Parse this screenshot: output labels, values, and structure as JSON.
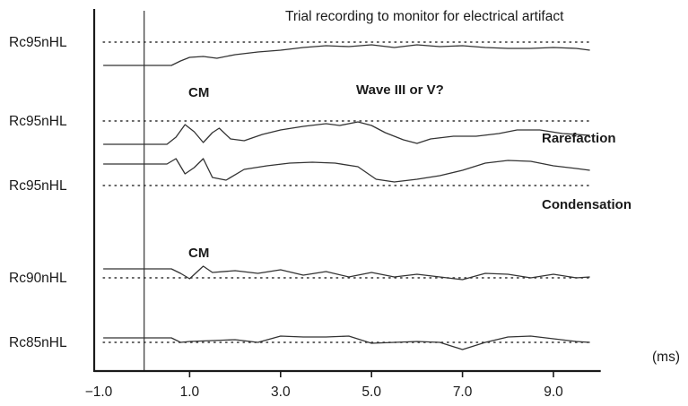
{
  "chart_data": {
    "type": "line",
    "title": "Trial recording to monitor for electrical artifact",
    "x_unit_label": "(ms)",
    "x_range": [
      -1.0,
      10.0
    ],
    "x_ticks": [
      -1.0,
      1.0,
      3.0,
      5.0,
      7.0,
      9.0
    ],
    "x_tick_labels": [
      "−1.0",
      "1.0",
      "3.0",
      "5.0",
      "7.0",
      "9.0"
    ],
    "stimulus_onset_ms": 0.0,
    "grid": false,
    "series": [
      {
        "name": "Rc95nHL",
        "note": "",
        "points": [
          [
            -0.9,
            0
          ],
          [
            0.6,
            0
          ],
          [
            0.8,
            0.5
          ],
          [
            1.0,
            0.9
          ],
          [
            1.3,
            1.0
          ],
          [
            1.6,
            0.8
          ],
          [
            2.0,
            1.2
          ],
          [
            2.5,
            1.5
          ],
          [
            3.0,
            1.7
          ],
          [
            3.5,
            2.0
          ],
          [
            4.0,
            2.2
          ],
          [
            4.5,
            2.1
          ],
          [
            5.0,
            2.3
          ],
          [
            5.5,
            2.0
          ],
          [
            6.0,
            2.3
          ],
          [
            6.5,
            2.1
          ],
          [
            7.0,
            2.2
          ],
          [
            7.5,
            2.0
          ],
          [
            8.0,
            1.9
          ],
          [
            8.5,
            1.9
          ],
          [
            9.0,
            2.0
          ],
          [
            9.5,
            1.9
          ],
          [
            9.8,
            1.7
          ]
        ]
      },
      {
        "name": "Rc95nHL",
        "note": "Rarefaction",
        "points": [
          [
            -0.9,
            0
          ],
          [
            0.5,
            0
          ],
          [
            0.7,
            0.8
          ],
          [
            0.9,
            2.2
          ],
          [
            1.1,
            1.4
          ],
          [
            1.3,
            0.2
          ],
          [
            1.5,
            1.3
          ],
          [
            1.65,
            1.8
          ],
          [
            1.9,
            0.6
          ],
          [
            2.2,
            0.4
          ],
          [
            2.6,
            1.1
          ],
          [
            3.0,
            1.6
          ],
          [
            3.5,
            2.0
          ],
          [
            4.0,
            2.3
          ],
          [
            4.3,
            2.1
          ],
          [
            4.7,
            2.5
          ],
          [
            5.0,
            2.1
          ],
          [
            5.3,
            1.3
          ],
          [
            5.7,
            0.5
          ],
          [
            6.0,
            0.1
          ],
          [
            6.3,
            0.6
          ],
          [
            6.8,
            0.9
          ],
          [
            7.3,
            0.9
          ],
          [
            7.8,
            1.2
          ],
          [
            8.2,
            1.6
          ],
          [
            8.7,
            1.6
          ],
          [
            9.2,
            1.2
          ],
          [
            9.8,
            1.0
          ]
        ]
      },
      {
        "name": "Rc95nHL",
        "note": "Condensation",
        "points": [
          [
            -0.9,
            0
          ],
          [
            0.5,
            0
          ],
          [
            0.7,
            0.6
          ],
          [
            0.9,
            -1.1
          ],
          [
            1.1,
            -0.4
          ],
          [
            1.3,
            0.6
          ],
          [
            1.5,
            -1.5
          ],
          [
            1.8,
            -1.8
          ],
          [
            2.2,
            -0.6
          ],
          [
            2.7,
            -0.2
          ],
          [
            3.2,
            0.1
          ],
          [
            3.7,
            0.2
          ],
          [
            4.2,
            0.1
          ],
          [
            4.7,
            -0.3
          ],
          [
            5.1,
            -1.7
          ],
          [
            5.5,
            -2.0
          ],
          [
            6.0,
            -1.7
          ],
          [
            6.5,
            -1.3
          ],
          [
            7.0,
            -0.7
          ],
          [
            7.5,
            0.1
          ],
          [
            8.0,
            0.4
          ],
          [
            8.5,
            0.3
          ],
          [
            9.0,
            -0.2
          ],
          [
            9.5,
            -0.5
          ],
          [
            9.8,
            -0.7
          ]
        ]
      },
      {
        "name": "Rc90nHL",
        "note": "",
        "points": [
          [
            -0.9,
            0
          ],
          [
            0.6,
            0
          ],
          [
            0.8,
            -0.5
          ],
          [
            1.0,
            -1.1
          ],
          [
            1.3,
            0.3
          ],
          [
            1.5,
            -0.4
          ],
          [
            2.0,
            -0.2
          ],
          [
            2.5,
            -0.5
          ],
          [
            3.0,
            -0.1
          ],
          [
            3.5,
            -0.7
          ],
          [
            4.0,
            -0.3
          ],
          [
            4.5,
            -0.9
          ],
          [
            5.0,
            -0.4
          ],
          [
            5.5,
            -0.9
          ],
          [
            6.0,
            -0.6
          ],
          [
            6.5,
            -0.9
          ],
          [
            7.0,
            -1.2
          ],
          [
            7.5,
            -0.5
          ],
          [
            8.0,
            -0.6
          ],
          [
            8.5,
            -1.0
          ],
          [
            9.0,
            -0.6
          ],
          [
            9.5,
            -1.0
          ],
          [
            9.8,
            -0.9
          ]
        ]
      },
      {
        "name": "Rc85nHL",
        "note": "",
        "points": [
          [
            -0.9,
            0
          ],
          [
            0.6,
            0
          ],
          [
            0.8,
            -0.5
          ],
          [
            1.0,
            -0.4
          ],
          [
            1.5,
            -0.3
          ],
          [
            2.0,
            -0.2
          ],
          [
            2.5,
            -0.5
          ],
          [
            3.0,
            0.2
          ],
          [
            3.5,
            0.1
          ],
          [
            4.0,
            0.1
          ],
          [
            4.5,
            0.2
          ],
          [
            5.0,
            -0.6
          ],
          [
            5.5,
            -0.5
          ],
          [
            6.0,
            -0.4
          ],
          [
            6.5,
            -0.5
          ],
          [
            7.0,
            -1.3
          ],
          [
            7.5,
            -0.5
          ],
          [
            8.0,
            0.1
          ],
          [
            8.5,
            0.2
          ],
          [
            9.0,
            -0.1
          ],
          [
            9.5,
            -0.4
          ],
          [
            9.8,
            -0.5
          ]
        ]
      }
    ],
    "annotations": [
      {
        "text": "CM",
        "x_ms": 1.5,
        "trace": 1
      },
      {
        "text": "Wave III or V?",
        "x_ms": 4.2,
        "trace": 1
      },
      {
        "text": "CM",
        "x_ms": 1.5,
        "trace": 3
      }
    ]
  }
}
